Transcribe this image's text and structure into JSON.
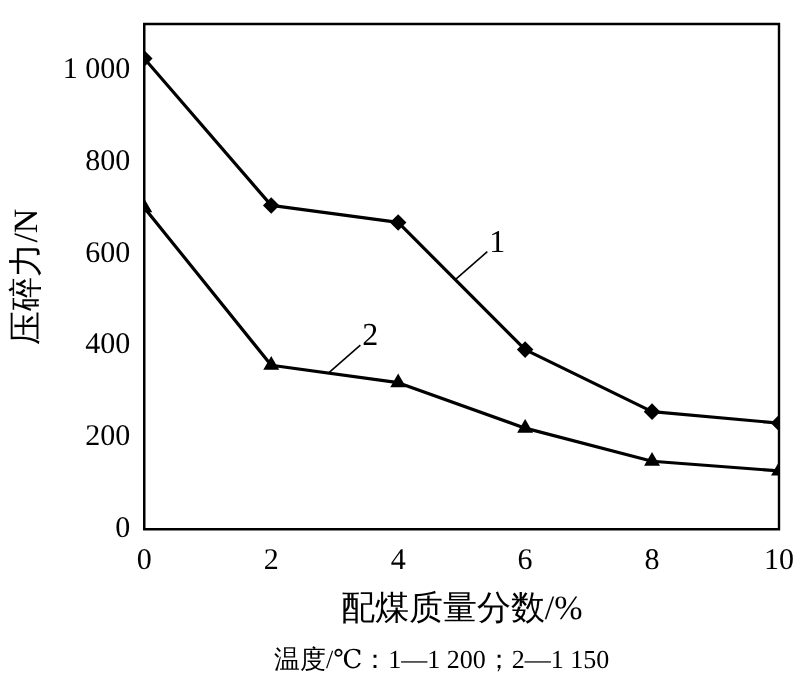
{
  "chart_data": {
    "type": "line",
    "xlabel": "配煤质量分数/%",
    "ylabel": "压碎力/N",
    "x": [
      0,
      2,
      4,
      6,
      8,
      10
    ],
    "series": [
      {
        "name": "1",
        "color": "#000000",
        "marker": "diamond",
        "values": [
          1025,
          705,
          668,
          391,
          256,
          231
        ]
      },
      {
        "name": "2",
        "color": "#000000",
        "marker": "triangle",
        "values": [
          700,
          357,
          319,
          220,
          148,
          127
        ]
      }
    ],
    "xlim": [
      0,
      10
    ],
    "xticks": [
      0,
      2,
      4,
      6,
      8,
      10
    ],
    "ylim": [
      0,
      1100
    ],
    "yticks": [
      0,
      200,
      400,
      600,
      800,
      {
        "value": 1000,
        "label": "1 000"
      }
    ],
    "grid": false,
    "legend": false,
    "line_style": "solid",
    "annotations": [
      "温度/℃：1—1 200；2—1 150"
    ]
  }
}
